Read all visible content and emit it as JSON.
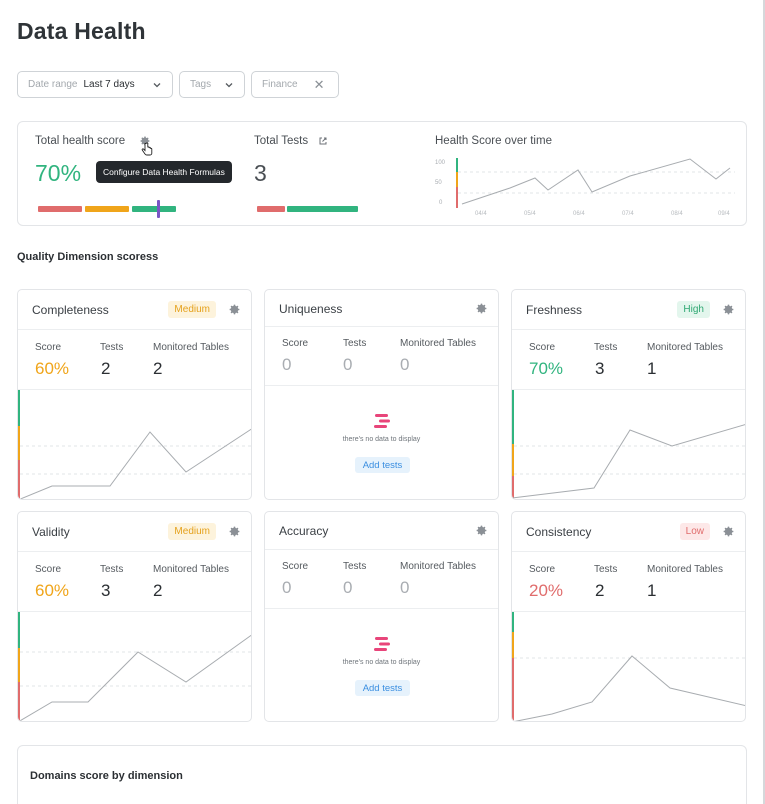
{
  "page": {
    "title": "Data Health"
  },
  "filters": {
    "date_range": {
      "label": "Date range",
      "value": "Last 7 days"
    },
    "tags": {
      "placeholder": "Tags"
    },
    "finance": {
      "value": "Finance"
    }
  },
  "summary": {
    "total_health_score": {
      "label": "Total health score",
      "value": "70%",
      "tooltip": "Configure Data Health Formulas",
      "bar": [
        {
          "color": "#e06c6c",
          "fraction": 0.32
        },
        {
          "color": "#f0a51a",
          "fraction": 0.32
        },
        {
          "color": "#31b47f",
          "fraction": 0.32
        }
      ],
      "marker_fraction": 0.87
    },
    "total_tests": {
      "label": "Total Tests",
      "value": "3",
      "bar": [
        {
          "color": "#e06c6c",
          "fraction": 0.28
        },
        {
          "color": "#31b47f",
          "fraction": 0.72
        }
      ]
    },
    "health_over_time": {
      "label": "Health Score over time",
      "y_ticks": [
        "100",
        "50",
        "0"
      ],
      "x_ticks": [
        "04/4",
        "05/4",
        "06/4",
        "07/4",
        "08/4",
        "09/4"
      ]
    }
  },
  "quality_section": {
    "title": "Quality Dimension scoress"
  },
  "stat_labels": {
    "score": "Score",
    "tests": "Tests",
    "monitored": "Monitored Tables"
  },
  "empty_state": {
    "text": "there's no data to display",
    "button": "Add tests"
  },
  "dimensions": [
    {
      "name": "Completeness",
      "badge": "Medium",
      "score": "60%",
      "tests": "2",
      "tables": "2"
    },
    {
      "name": "Uniqueness",
      "badge": "",
      "score": "0",
      "tests": "0",
      "tables": "0"
    },
    {
      "name": "Freshness",
      "badge": "High",
      "score": "70%",
      "tests": "3",
      "tables": "1"
    },
    {
      "name": "Validity",
      "badge": "Medium",
      "score": "60%",
      "tests": "3",
      "tables": "2"
    },
    {
      "name": "Accuracy",
      "badge": "",
      "score": "0",
      "tests": "0",
      "tables": "0"
    },
    {
      "name": "Consistency",
      "badge": "Low",
      "score": "20%",
      "tests": "2",
      "tables": "1"
    }
  ],
  "colors": {
    "red": "#e06c6c",
    "orange": "#f0a51a",
    "green": "#31b47f",
    "badge_medium_bg": "#fdf3dc",
    "badge_medium_fg": "#e5a11c",
    "badge_high_bg": "#e3f6ed",
    "badge_high_fg": "#2fa873",
    "badge_low_bg": "#fde8e8",
    "badge_low_fg": "#e06c6c"
  },
  "domains": {
    "title": "Domains score by dimension"
  }
}
